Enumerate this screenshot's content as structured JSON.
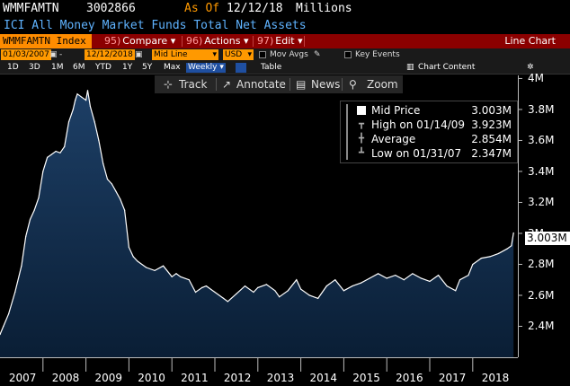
{
  "header": {
    "ticker": "WMMFAMTN",
    "value": "3002866",
    "as_of_label": "As Of",
    "as_of_date": "12/12/18",
    "units": "Millions",
    "description": "ICI All Money Market Funds Total Net Assets"
  },
  "toolbar": {
    "index_label": "WMMFAMTN Index",
    "buttons": [
      {
        "num": "95)",
        "label": "Compare",
        "arrow": "▾"
      },
      {
        "num": "96)",
        "label": "Actions",
        "arrow": "▾"
      },
      {
        "num": "97)",
        "label": "Edit",
        "arrow": "▾"
      }
    ],
    "right_label": "Line Chart"
  },
  "controls": {
    "start_date": "01/03/2007",
    "end_date": "12/12/2018",
    "line_type": "Mid Line",
    "currency": "USD",
    "mov_avgs": "Mov Avgs",
    "key_events": "Key Events",
    "chart_content": "Chart Content"
  },
  "periods": {
    "items": [
      "1D",
      "3D",
      "1M",
      "6M",
      "YTD",
      "1Y",
      "5Y",
      "Max"
    ],
    "frequency": "Weekly",
    "table": "Table"
  },
  "tools": {
    "track": "Track",
    "annotate": "Annotate",
    "news": "News",
    "zoom": "Zoom"
  },
  "legend": {
    "series": {
      "label": "Mid Price",
      "value": "3.003M"
    },
    "high": {
      "label": "High on 01/14/09",
      "value": "3.923M"
    },
    "average": {
      "label": "Average",
      "value": "2.854M"
    },
    "low": {
      "label": "Low on 01/31/07",
      "value": "2.347M"
    }
  },
  "colors": {
    "accent_orange": "#ff9900",
    "toolbar_red": "#8b0000",
    "series_fill_top": "#1d3f66",
    "series_fill_bottom": "#0a1e35",
    "series_line": "#ffffff"
  },
  "chart_data": {
    "type": "area",
    "title": "ICI All Money Market Funds Total Net Assets",
    "ylabel": "",
    "xlabel": "",
    "y_tick_labels": [
      "2.4M",
      "2.6M",
      "2.8M",
      "3M",
      "3.2M",
      "3.4M",
      "3.6M",
      "3.8M",
      "4M"
    ],
    "y_ticks": [
      2.4,
      2.6,
      2.8,
      3.0,
      3.2,
      3.4,
      3.6,
      3.8,
      4.0
    ],
    "ylim": [
      2.2,
      4.02
    ],
    "x_tick_labels": [
      "2007",
      "2008",
      "2009",
      "2010",
      "2011",
      "2012",
      "2013",
      "2014",
      "2015",
      "2016",
      "2017",
      "2018"
    ],
    "xlim": [
      2007.0,
      2019.05
    ],
    "grid": false,
    "last_value_label": "3.003M",
    "series": [
      {
        "name": "Mid Price",
        "x": [
          2007.0,
          2007.08,
          2007.2,
          2007.35,
          2007.5,
          2007.6,
          2007.7,
          2007.8,
          2007.9,
          2008.0,
          2008.1,
          2008.2,
          2008.3,
          2008.4,
          2008.5,
          2008.6,
          2008.7,
          2008.75,
          2008.8,
          2008.9,
          2009.0,
          2009.04,
          2009.1,
          2009.2,
          2009.3,
          2009.4,
          2009.5,
          2009.6,
          2009.7,
          2009.8,
          2009.9,
          2010.0,
          2010.1,
          2010.2,
          2010.4,
          2010.6,
          2010.8,
          2011.0,
          2011.1,
          2011.2,
          2011.4,
          2011.55,
          2011.7,
          2011.8,
          2012.0,
          2012.2,
          2012.3,
          2012.5,
          2012.7,
          2012.9,
          2013.0,
          2013.2,
          2013.4,
          2013.5,
          2013.7,
          2013.9,
          2014.0,
          2014.2,
          2014.4,
          2014.6,
          2014.8,
          2015.0,
          2015.2,
          2015.4,
          2015.6,
          2015.8,
          2016.0,
          2016.2,
          2016.4,
          2016.6,
          2016.8,
          2017.0,
          2017.2,
          2017.4,
          2017.6,
          2017.7,
          2017.9,
          2018.0,
          2018.2,
          2018.4,
          2018.6,
          2018.8,
          2018.9,
          2018.95
        ],
        "values": [
          2.347,
          2.4,
          2.48,
          2.62,
          2.79,
          2.98,
          3.09,
          3.15,
          3.23,
          3.4,
          3.49,
          3.51,
          3.53,
          3.52,
          3.56,
          3.72,
          3.8,
          3.86,
          3.9,
          3.88,
          3.86,
          3.923,
          3.82,
          3.72,
          3.6,
          3.45,
          3.35,
          3.32,
          3.27,
          3.22,
          3.15,
          2.91,
          2.85,
          2.82,
          2.78,
          2.76,
          2.79,
          2.72,
          2.74,
          2.72,
          2.7,
          2.62,
          2.65,
          2.66,
          2.62,
          2.58,
          2.56,
          2.61,
          2.66,
          2.62,
          2.65,
          2.67,
          2.63,
          2.59,
          2.63,
          2.7,
          2.64,
          2.6,
          2.58,
          2.66,
          2.7,
          2.63,
          2.66,
          2.68,
          2.71,
          2.74,
          2.71,
          2.73,
          2.7,
          2.74,
          2.71,
          2.69,
          2.73,
          2.66,
          2.63,
          2.7,
          2.73,
          2.8,
          2.84,
          2.85,
          2.87,
          2.9,
          2.92,
          3.003
        ]
      }
    ]
  }
}
